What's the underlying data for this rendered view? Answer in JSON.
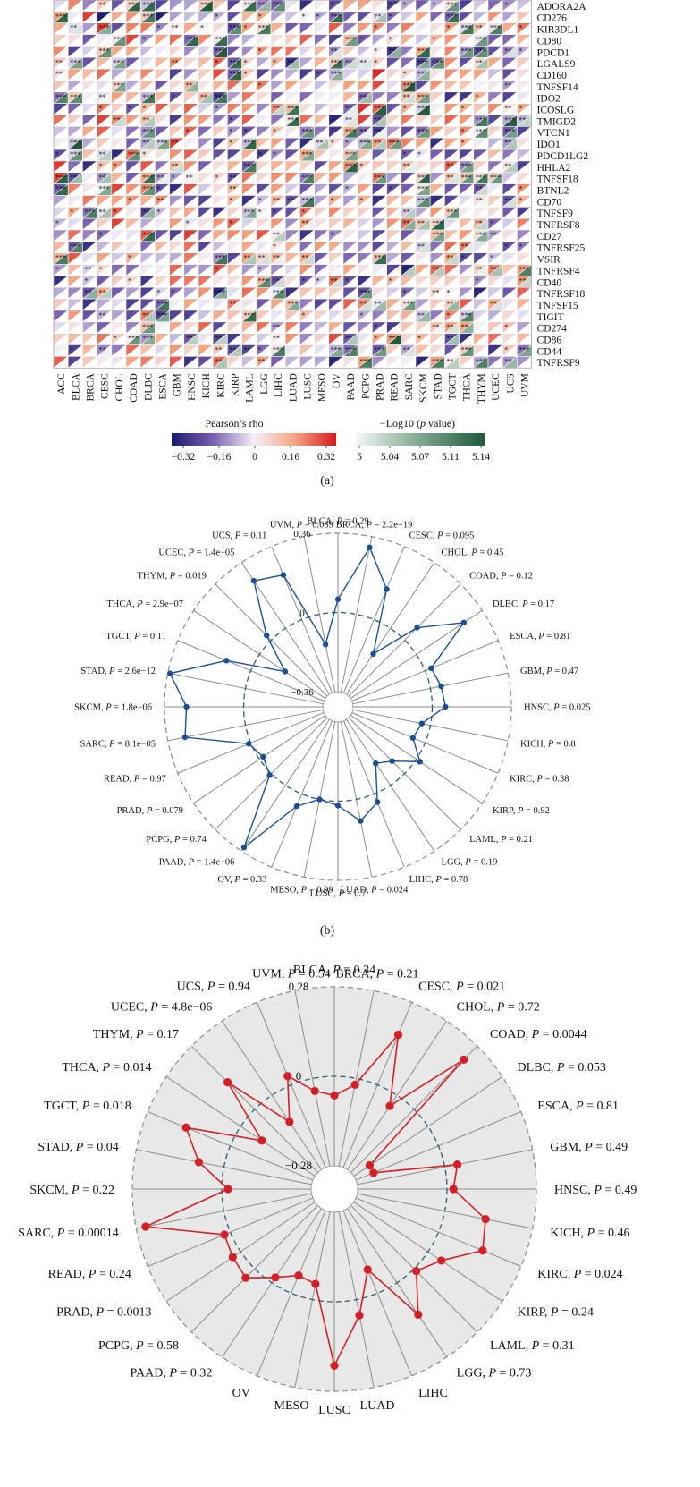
{
  "panel_labels": [
    "(a)",
    "(b)"
  ],
  "chart_data": [
    {
      "type": "heatmap",
      "cancers": [
        "ACC",
        "BLCA",
        "BRCA",
        "CESC",
        "CHOL",
        "COAD",
        "DLBC",
        "ESCA",
        "GBM",
        "HNSC",
        "KICH",
        "KIRC",
        "KIRP",
        "LAML",
        "LGG",
        "LIHC",
        "LUAD",
        "LUSC",
        "MESO",
        "OV",
        "PAAD",
        "PCPG",
        "PRAD",
        "READ",
        "SARC",
        "SKCM",
        "STAD",
        "TGCT",
        "THCA",
        "THYM",
        "UCEC",
        "UCS",
        "UVM"
      ],
      "genes": [
        "ADORA2A",
        "CD276",
        "KIR3DL1",
        "CD80",
        "PDCD1",
        "LGALS9",
        "CD160",
        "TNFSF14",
        "IDO2",
        "ICOSLG",
        "TMIGD2",
        "VTCN1",
        "IDO1",
        "PDCD1LG2",
        "HHLA2",
        "TNFSF18",
        "BTNL2",
        "CD70",
        "TNFSF9",
        "TNFRSF8",
        "CD27",
        "TNFRSF25",
        "VSIR",
        "TNFRSF4",
        "CD40",
        "TNFRSF18",
        "TNFSF15",
        "TIGIT",
        "CD274",
        "CD86",
        "CD44",
        "TNFRSF9"
      ],
      "legend_rho": {
        "title": "Pearson’s rho",
        "ticks": [
          "−0.32",
          "−0.16",
          "0",
          "0.16",
          "0.32"
        ],
        "colors": [
          "#1a1a6e",
          "#7a5fb0",
          "#f3eff7",
          "#f4a582",
          "#d7191c"
        ]
      },
      "legend_p": {
        "title_prefix": "−Log10 (",
        "title_italic": "p",
        "title_suffix": " value)",
        "ticks": [
          "5",
          "5.04",
          "5.07",
          "5.11",
          "5.14"
        ],
        "colors": [
          "#f4f8f5",
          "#7fa78f",
          "#1f5a3a"
        ]
      }
    },
    {
      "type": "radar",
      "color": "#1c4f91",
      "rlim": [
        -0.36,
        0.36
      ],
      "ring_labels": [
        "0.36",
        "0",
        "−0.36"
      ],
      "categories": [
        {
          "name": "BLCA",
          "p": "0.29",
          "value": 0.06
        },
        {
          "name": "BRCA",
          "p": "2.2e−19",
          "value": 0.31
        },
        {
          "name": "CESC",
          "p": "0.095",
          "value": 0.15
        },
        {
          "name": "CHOL",
          "p": "0.45",
          "value": -0.14
        },
        {
          "name": "COAD",
          "p": "0.12",
          "value": 0.08
        },
        {
          "name": "DLBC",
          "p": "0.17",
          "value": 0.26
        },
        {
          "name": "ESCA",
          "p": "0.81",
          "value": 0.03
        },
        {
          "name": "GBM",
          "p": "0.47",
          "value": 0.05
        },
        {
          "name": "HNSC",
          "p": "0.025",
          "value": 0.06
        },
        {
          "name": "KICH",
          "p": "0.8",
          "value": -0.04
        },
        {
          "name": "KIRC",
          "p": "0.38",
          "value": -0.06
        },
        {
          "name": "KIRP",
          "p": "0.92",
          "value": 0.02
        },
        {
          "name": "LAML",
          "p": "0.21",
          "value": -0.08
        },
        {
          "name": "LGG",
          "p": "0.19",
          "value": -0.12
        },
        {
          "name": "LIHC",
          "p": "0.78",
          "value": 0.04
        },
        {
          "name": "LUAD",
          "p": "0.024",
          "value": 0.1
        },
        {
          "name": "LUSC",
          "p": "0.7",
          "value": 0.02
        },
        {
          "name": "MESO",
          "p": "0.99",
          "value": 0.0
        },
        {
          "name": "OV",
          "p": "0.33",
          "value": 0.06
        },
        {
          "name": "PAAD",
          "p": "1.4e−06",
          "value": 0.34
        },
        {
          "name": "PCPG",
          "p": "0.74",
          "value": 0.01
        },
        {
          "name": "PRAD",
          "p": "0.079",
          "value": -0.02
        },
        {
          "name": "READ",
          "p": "0.97",
          "value": 0.01
        },
        {
          "name": "SARC",
          "p": "8.1e−05",
          "value": 0.28
        },
        {
          "name": "SKCM",
          "p": "1.8e−06",
          "value": 0.26
        },
        {
          "name": "STAD",
          "p": "2.6e−12",
          "value": 0.35
        },
        {
          "name": "TGCT",
          "p": "0.11",
          "value": 0.12
        },
        {
          "name": "THCA",
          "p": "2.9e−07",
          "value": -0.14
        },
        {
          "name": "THYM",
          "p": "0.019",
          "value": 0.03
        },
        {
          "name": "UCEC",
          "p": "1.4e−05",
          "value": 0.26
        },
        {
          "name": "UCS",
          "p": "0.11",
          "value": 0.22
        },
        {
          "name": "UVM",
          "p": "0.089",
          "value": -0.14
        }
      ]
    },
    {
      "type": "radar",
      "color": "#d41f26",
      "rlim": [
        -0.28,
        0.28
      ],
      "ring_labels": [
        "0.28",
        "0",
        "−0.28"
      ],
      "categories": [
        {
          "name": "BLCA",
          "p": "0.34",
          "value": -0.06
        },
        {
          "name": "BRCA",
          "p": "0.21",
          "value": -0.02
        },
        {
          "name": "CESC",
          "p": "0.021",
          "value": 0.17
        },
        {
          "name": "CHOL",
          "p": "0.72",
          "value": -0.04
        },
        {
          "name": "COAD",
          "p": "0.0044",
          "value": 0.22
        },
        {
          "name": "DLBC",
          "p": "0.053",
          "value": -0.22
        },
        {
          "name": "ESCA",
          "p": "0.81",
          "value": -0.22
        },
        {
          "name": "GBM",
          "p": "0.49",
          "value": 0.04
        },
        {
          "name": "HNSC",
          "p": "0.49",
          "value": 0.02
        },
        {
          "name": "KICH",
          "p": "0.46",
          "value": 0.13
        },
        {
          "name": "KIRC",
          "p": "0.024",
          "value": 0.15
        },
        {
          "name": "KIRP",
          "p": "0.24",
          "value": 0.05
        },
        {
          "name": "LAML",
          "p": "0.31",
          "value": 0.01
        },
        {
          "name": "LGG",
          "p": "0.73",
          "value": 0.12
        },
        {
          "name": "LIHC",
          "p": "",
          "value": -0.08
        },
        {
          "name": "LUAD",
          "p": "",
          "value": 0.05
        },
        {
          "name": "LUSC",
          "p": "",
          "value": 0.2
        },
        {
          "name": "MESO",
          "p": "",
          "value": -0.05
        },
        {
          "name": "OV",
          "p": "",
          "value": -0.06
        },
        {
          "name": "PAAD",
          "p": "0.32",
          "value": -0.02
        },
        {
          "name": "PCPG",
          "p": "0.58",
          "value": 0.04
        },
        {
          "name": "PRAD",
          "p": "0.0013",
          "value": 0.03
        },
        {
          "name": "READ",
          "p": "0.24",
          "value": 0.02
        },
        {
          "name": "SARC",
          "p": "0.00014",
          "value": 0.25
        },
        {
          "name": "SKCM",
          "p": "0.22",
          "value": -0.02
        },
        {
          "name": "STAD",
          "p": "0.04",
          "value": 0.08
        },
        {
          "name": "TGCT",
          "p": "0.018",
          "value": 0.15
        },
        {
          "name": "THCA",
          "p": "0.014",
          "value": -0.08
        },
        {
          "name": "THYM",
          "p": "0.17",
          "value": 0.12
        },
        {
          "name": "UCEC",
          "p": "4.8e−06",
          "value": -0.1
        },
        {
          "name": "UCS",
          "p": "0.94",
          "value": 0.03
        },
        {
          "name": "UVM",
          "p": "0.54",
          "value": -0.04
        }
      ]
    }
  ]
}
